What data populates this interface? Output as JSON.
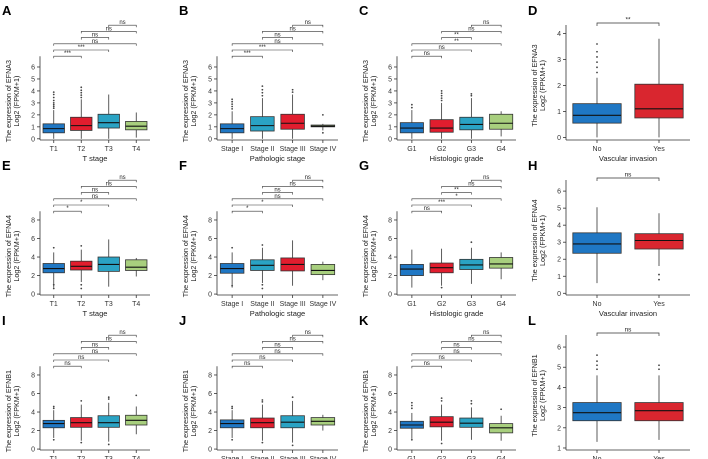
{
  "colors": {
    "stage1": "#1f77c4",
    "stage2": "#e11d2e",
    "stage3": "#2aa3c4",
    "stage4": "#a8cf7e",
    "yes": "#d9262f"
  },
  "ylabel_line2": "Log2 (FPKM+1)",
  "chart_data": [
    {
      "id": "A",
      "panel_label": "A",
      "type": "box",
      "gene": "EFNA3",
      "ylabel": "The expression of EFNA3",
      "xlabel": "T stage",
      "categories": [
        "T1",
        "T2",
        "T3",
        "T4"
      ],
      "color_keys": [
        "stage1",
        "stage2",
        "stage3",
        "stage4"
      ],
      "ylim": [
        -0.1,
        6.4
      ],
      "yticks": [
        0,
        1,
        2,
        3,
        4,
        5,
        6
      ],
      "boxes": [
        {
          "q1": 0.5,
          "med": 0.85,
          "q3": 1.25,
          "lo": 0.0,
          "hi": 2.4,
          "out": [
            2.55,
            2.7,
            2.85,
            3.0,
            3.2,
            3.45,
            3.7,
            3.9
          ]
        },
        {
          "q1": 0.7,
          "med": 1.1,
          "q3": 1.8,
          "lo": 0.0,
          "hi": 3.3,
          "out": [
            3.45,
            3.65,
            3.85,
            4.05,
            4.3
          ]
        },
        {
          "q1": 0.9,
          "med": 1.35,
          "q3": 2.05,
          "lo": 0.0,
          "hi": 3.7,
          "out": []
        },
        {
          "q1": 0.75,
          "med": 1.05,
          "q3": 1.45,
          "lo": 0.1,
          "hi": 2.2,
          "out": []
        }
      ],
      "sig": [
        {
          "a": 0,
          "b": 1,
          "label": "***"
        },
        {
          "a": 0,
          "b": 2,
          "label": "***"
        },
        {
          "a": 0,
          "b": 3,
          "label": "ns"
        },
        {
          "a": 1,
          "b": 2,
          "label": "ns"
        },
        {
          "a": 1,
          "b": 3,
          "label": "ns"
        },
        {
          "a": 2,
          "b": 3,
          "label": "ns"
        }
      ]
    },
    {
      "id": "B",
      "panel_label": "B",
      "type": "box",
      "gene": "EFNA3",
      "ylabel": "The expression of EFNA3",
      "xlabel": "Pathologic stage",
      "categories": [
        "Stage I",
        "Stage II",
        "Stage III",
        "Stage IV"
      ],
      "color_keys": [
        "stage1",
        "stage3",
        "stage2",
        "stage4"
      ],
      "ylim": [
        -0.1,
        6.4
      ],
      "yticks": [
        0,
        1,
        2,
        3,
        4,
        5,
        6
      ],
      "boxes": [
        {
          "q1": 0.5,
          "med": 0.85,
          "q3": 1.25,
          "lo": 0.0,
          "hi": 2.3,
          "out": [
            2.5,
            2.7,
            2.9,
            3.1,
            3.3
          ]
        },
        {
          "q1": 0.65,
          "med": 1.1,
          "q3": 1.85,
          "lo": 0.0,
          "hi": 3.4,
          "out": [
            3.6,
            3.85,
            4.1,
            4.4
          ]
        },
        {
          "q1": 0.8,
          "med": 1.3,
          "q3": 2.05,
          "lo": 0.0,
          "hi": 3.7,
          "out": [
            3.9,
            4.1
          ]
        },
        {
          "q1": 1.0,
          "med": 1.05,
          "q3": 1.15,
          "lo": 0.7,
          "hi": 1.25,
          "out": [
            2.0,
            0.5
          ]
        }
      ],
      "sig": [
        {
          "a": 0,
          "b": 1,
          "label": "***"
        },
        {
          "a": 0,
          "b": 2,
          "label": "***"
        },
        {
          "a": 0,
          "b": 3,
          "label": "ns"
        },
        {
          "a": 1,
          "b": 2,
          "label": "ns"
        },
        {
          "a": 1,
          "b": 3,
          "label": "ns"
        },
        {
          "a": 2,
          "b": 3,
          "label": "ns"
        }
      ]
    },
    {
      "id": "C",
      "panel_label": "C",
      "type": "box",
      "gene": "EFNA3",
      "ylabel": "The expression of EFNA3",
      "xlabel": "Histologic grade",
      "categories": [
        "G1",
        "G2",
        "G3",
        "G4"
      ],
      "color_keys": [
        "stage1",
        "stage2",
        "stage3",
        "stage4"
      ],
      "ylim": [
        -0.1,
        6.4
      ],
      "yticks": [
        0,
        1,
        2,
        3,
        4,
        5,
        6
      ],
      "boxes": [
        {
          "q1": 0.5,
          "med": 0.9,
          "q3": 1.35,
          "lo": 0.0,
          "hi": 2.4,
          "out": [
            2.6,
            2.85
          ]
        },
        {
          "q1": 0.55,
          "med": 0.9,
          "q3": 1.6,
          "lo": 0.0,
          "hi": 3.0,
          "out": [
            3.2,
            3.4,
            3.6,
            3.8,
            4.0
          ]
        },
        {
          "q1": 0.75,
          "med": 1.2,
          "q3": 1.8,
          "lo": 0.0,
          "hi": 3.4,
          "out": [
            3.6,
            3.75
          ]
        },
        {
          "q1": 0.8,
          "med": 1.3,
          "q3": 2.05,
          "lo": 0.2,
          "hi": 2.3,
          "out": []
        }
      ],
      "sig": [
        {
          "a": 0,
          "b": 1,
          "label": "ns"
        },
        {
          "a": 0,
          "b": 2,
          "label": "ns"
        },
        {
          "a": 0,
          "b": 3,
          "label": "**"
        },
        {
          "a": 1,
          "b": 2,
          "label": "**"
        },
        {
          "a": 1,
          "b": 3,
          "label": "ns"
        },
        {
          "a": 2,
          "b": 3,
          "label": "ns"
        }
      ]
    },
    {
      "id": "D",
      "panel_label": "D",
      "type": "box",
      "gene": "EFNA3",
      "ylabel": "The expression of EFNA3",
      "xlabel": "Vascular invasion",
      "categories": [
        "No",
        "Yes"
      ],
      "color_keys": [
        "stage1",
        "yes"
      ],
      "ylim": [
        -0.1,
        4.1
      ],
      "yticks": [
        0,
        1,
        2,
        3,
        4
      ],
      "boxes": [
        {
          "q1": 0.55,
          "med": 0.85,
          "q3": 1.3,
          "lo": 0.0,
          "hi": 2.3,
          "out": [
            2.5,
            2.7,
            2.9,
            3.1,
            3.3,
            3.6
          ]
        },
        {
          "q1": 0.75,
          "med": 1.1,
          "q3": 2.05,
          "lo": 0.0,
          "hi": 3.8,
          "out": []
        }
      ],
      "sig": [
        {
          "a": 0,
          "b": 1,
          "label": "**"
        }
      ]
    },
    {
      "id": "E",
      "panel_label": "E",
      "type": "box",
      "gene": "EFNA4",
      "ylabel": "The expression of EFNA4",
      "xlabel": "T stage",
      "categories": [
        "T1",
        "T2",
        "T3",
        "T4"
      ],
      "color_keys": [
        "stage1",
        "stage2",
        "stage3",
        "stage4"
      ],
      "ylim": [
        -0.1,
        8.3
      ],
      "yticks": [
        0,
        2,
        4,
        6,
        8
      ],
      "boxes": [
        {
          "q1": 2.3,
          "med": 2.75,
          "q3": 3.3,
          "lo": 0.7,
          "hi": 4.5,
          "out": [
            5.0,
            1.0,
            0.6
          ]
        },
        {
          "q1": 2.6,
          "med": 3.0,
          "q3": 3.55,
          "lo": 1.3,
          "hi": 4.8,
          "out": [
            1.0,
            0.6,
            5.2
          ]
        },
        {
          "q1": 2.45,
          "med": 3.2,
          "q3": 4.0,
          "lo": 0.8,
          "hi": 5.9,
          "out": []
        },
        {
          "q1": 2.55,
          "med": 2.9,
          "q3": 3.7,
          "lo": 1.9,
          "hi": 3.9,
          "out": []
        }
      ],
      "sig": [
        {
          "a": 0,
          "b": 1,
          "label": "*"
        },
        {
          "a": 0,
          "b": 2,
          "label": "*"
        },
        {
          "a": 0,
          "b": 3,
          "label": "ns"
        },
        {
          "a": 1,
          "b": 2,
          "label": "ns"
        },
        {
          "a": 1,
          "b": 3,
          "label": "ns"
        },
        {
          "a": 2,
          "b": 3,
          "label": "ns"
        }
      ]
    },
    {
      "id": "F",
      "panel_label": "F",
      "type": "box",
      "gene": "EFNA4",
      "ylabel": "The expression of EFNA4",
      "xlabel": "Pathologic stage",
      "categories": [
        "Stage I",
        "Stage II",
        "Stage III",
        "Stage IV"
      ],
      "color_keys": [
        "stage1",
        "stage3",
        "stage2",
        "stage4"
      ],
      "ylim": [
        -0.1,
        8.3
      ],
      "yticks": [
        0,
        2,
        4,
        6,
        8
      ],
      "boxes": [
        {
          "q1": 2.25,
          "med": 2.75,
          "q3": 3.3,
          "lo": 0.7,
          "hi": 4.5,
          "out": [
            5.0,
            0.9
          ]
        },
        {
          "q1": 2.55,
          "med": 3.1,
          "q3": 3.7,
          "lo": 1.2,
          "hi": 5.0,
          "out": [
            1.0,
            0.6,
            5.3
          ]
        },
        {
          "q1": 2.5,
          "med": 3.2,
          "q3": 3.9,
          "lo": 0.9,
          "hi": 5.8,
          "out": []
        },
        {
          "q1": 2.1,
          "med": 2.55,
          "q3": 3.2,
          "lo": 1.5,
          "hi": 3.5,
          "out": []
        }
      ],
      "sig": [
        {
          "a": 0,
          "b": 1,
          "label": "*"
        },
        {
          "a": 0,
          "b": 2,
          "label": "*"
        },
        {
          "a": 0,
          "b": 3,
          "label": "ns"
        },
        {
          "a": 1,
          "b": 2,
          "label": "ns"
        },
        {
          "a": 1,
          "b": 3,
          "label": "ns"
        },
        {
          "a": 2,
          "b": 3,
          "label": "ns"
        }
      ]
    },
    {
      "id": "G",
      "panel_label": "G",
      "type": "box",
      "gene": "EFNA4",
      "ylabel": "The expression of EFNA4",
      "xlabel": "Histologic grade",
      "categories": [
        "G1",
        "G2",
        "G3",
        "G4"
      ],
      "color_keys": [
        "stage1",
        "stage2",
        "stage3",
        "stage4"
      ],
      "ylim": [
        -0.1,
        8.3
      ],
      "yticks": [
        0,
        2,
        4,
        6,
        8
      ],
      "boxes": [
        {
          "q1": 2.0,
          "med": 2.7,
          "q3": 3.2,
          "lo": 0.7,
          "hi": 4.8,
          "out": []
        },
        {
          "q1": 2.3,
          "med": 2.85,
          "q3": 3.35,
          "lo": 0.9,
          "hi": 4.9,
          "out": [
            0.7
          ]
        },
        {
          "q1": 2.65,
          "med": 3.15,
          "q3": 3.75,
          "lo": 1.1,
          "hi": 5.0,
          "out": [
            5.6
          ]
        },
        {
          "q1": 2.8,
          "med": 3.25,
          "q3": 3.95,
          "lo": 1.6,
          "hi": 4.5,
          "out": []
        }
      ],
      "sig": [
        {
          "a": 0,
          "b": 1,
          "label": "ns"
        },
        {
          "a": 0,
          "b": 2,
          "label": "***"
        },
        {
          "a": 0,
          "b": 3,
          "label": "*"
        },
        {
          "a": 1,
          "b": 2,
          "label": "**"
        },
        {
          "a": 1,
          "b": 3,
          "label": "ns"
        },
        {
          "a": 2,
          "b": 3,
          "label": "ns"
        }
      ]
    },
    {
      "id": "H",
      "panel_label": "H",
      "type": "box",
      "gene": "EFNA4",
      "ylabel": "The expression of EFNA4",
      "xlabel": "Vascular invasion",
      "categories": [
        "No",
        "Yes"
      ],
      "color_keys": [
        "stage1",
        "yes"
      ],
      "ylim": [
        -0.1,
        6.3
      ],
      "yticks": [
        0,
        1,
        2,
        3,
        4,
        5,
        6
      ],
      "boxes": [
        {
          "q1": 2.35,
          "med": 2.9,
          "q3": 3.55,
          "lo": 0.6,
          "hi": 5.05,
          "out": []
        },
        {
          "q1": 2.6,
          "med": 3.1,
          "q3": 3.5,
          "lo": 1.6,
          "hi": 4.7,
          "out": [
            1.1,
            0.8
          ]
        }
      ],
      "sig": [
        {
          "a": 0,
          "b": 1,
          "label": "ns"
        }
      ]
    },
    {
      "id": "I",
      "panel_label": "I",
      "type": "box",
      "gene": "EFNB1",
      "ylabel": "The expression of EFNB1",
      "xlabel": "T stage",
      "categories": [
        "T1",
        "T2",
        "T3",
        "T4"
      ],
      "color_keys": [
        "stage1",
        "stage2",
        "stage3",
        "stage4"
      ],
      "ylim": [
        -0.1,
        8.3
      ],
      "yticks": [
        0,
        2,
        4,
        6,
        8
      ],
      "boxes": [
        {
          "q1": 2.3,
          "med": 2.75,
          "q3": 3.1,
          "lo": 1.2,
          "hi": 4.2,
          "out": [
            4.4,
            4.6,
            1.0
          ]
        },
        {
          "q1": 2.35,
          "med": 2.85,
          "q3": 3.4,
          "lo": 0.9,
          "hi": 4.8,
          "out": [
            5.2,
            0.7
          ]
        },
        {
          "q1": 2.35,
          "med": 2.85,
          "q3": 3.6,
          "lo": 0.8,
          "hi": 5.0,
          "out": [
            5.4,
            5.6,
            0.5
          ]
        },
        {
          "q1": 2.6,
          "med": 3.1,
          "q3": 3.65,
          "lo": 1.6,
          "hi": 4.6,
          "out": [
            5.8
          ]
        }
      ],
      "sig": [
        {
          "a": 0,
          "b": 1,
          "label": "ns"
        },
        {
          "a": 0,
          "b": 2,
          "label": "ns"
        },
        {
          "a": 0,
          "b": 3,
          "label": "ns"
        },
        {
          "a": 1,
          "b": 2,
          "label": "ns"
        },
        {
          "a": 1,
          "b": 3,
          "label": "ns"
        },
        {
          "a": 2,
          "b": 3,
          "label": "ns"
        }
      ]
    },
    {
      "id": "J",
      "panel_label": "J",
      "type": "box",
      "gene": "EFNB1",
      "ylabel": "The expression of EFNB1",
      "xlabel": "Pathologic stage",
      "categories": [
        "Stage I",
        "Stage II",
        "Stage III",
        "Stage IV"
      ],
      "color_keys": [
        "stage1",
        "stage2",
        "stage3",
        "stage4"
      ],
      "ylim": [
        -0.1,
        8.3
      ],
      "yticks": [
        0,
        2,
        4,
        6,
        8
      ],
      "boxes": [
        {
          "q1": 2.3,
          "med": 2.75,
          "q3": 3.15,
          "lo": 1.2,
          "hi": 4.2,
          "out": [
            4.4,
            4.6,
            1.0
          ]
        },
        {
          "q1": 2.3,
          "med": 2.85,
          "q3": 3.35,
          "lo": 0.9,
          "hi": 4.8,
          "out": [
            5.1,
            5.3,
            0.7
          ]
        },
        {
          "q1": 2.3,
          "med": 2.9,
          "q3": 3.6,
          "lo": 0.7,
          "hi": 5.2,
          "out": [
            5.6,
            0.4
          ]
        },
        {
          "q1": 2.6,
          "med": 3.0,
          "q3": 3.4,
          "lo": 2.0,
          "hi": 3.7,
          "out": []
        }
      ],
      "sig": [
        {
          "a": 0,
          "b": 1,
          "label": "ns"
        },
        {
          "a": 0,
          "b": 2,
          "label": "ns"
        },
        {
          "a": 0,
          "b": 3,
          "label": "ns"
        },
        {
          "a": 1,
          "b": 2,
          "label": "ns"
        },
        {
          "a": 1,
          "b": 3,
          "label": "ns"
        },
        {
          "a": 2,
          "b": 3,
          "label": "ns"
        }
      ]
    },
    {
      "id": "K",
      "panel_label": "K",
      "type": "box",
      "gene": "EFNB1",
      "ylabel": "The expression of EFNB1",
      "xlabel": "Histologic grade",
      "categories": [
        "G1",
        "G2",
        "G3",
        "G4"
      ],
      "color_keys": [
        "stage1",
        "stage2",
        "stage3",
        "stage4"
      ],
      "ylim": [
        -0.1,
        8.3
      ],
      "yticks": [
        0,
        2,
        4,
        6,
        8
      ],
      "boxes": [
        {
          "q1": 2.25,
          "med": 2.6,
          "q3": 3.0,
          "lo": 1.1,
          "hi": 3.9,
          "out": [
            4.4,
            4.7,
            5.0,
            1.0
          ]
        },
        {
          "q1": 2.4,
          "med": 2.9,
          "q3": 3.5,
          "lo": 0.9,
          "hi": 4.8,
          "out": [
            5.2,
            5.5,
            0.6
          ]
        },
        {
          "q1": 2.35,
          "med": 2.8,
          "q3": 3.35,
          "lo": 1.0,
          "hi": 4.5,
          "out": [
            4.9,
            5.2
          ]
        },
        {
          "q1": 1.75,
          "med": 2.3,
          "q3": 2.75,
          "lo": 0.9,
          "hi": 3.6,
          "out": [
            4.3
          ]
        }
      ],
      "sig": [
        {
          "a": 0,
          "b": 1,
          "label": "ns"
        },
        {
          "a": 0,
          "b": 2,
          "label": "ns"
        },
        {
          "a": 0,
          "b": 3,
          "label": "ns"
        },
        {
          "a": 1,
          "b": 2,
          "label": "ns"
        },
        {
          "a": 1,
          "b": 3,
          "label": "ns"
        },
        {
          "a": 2,
          "b": 3,
          "label": "ns"
        }
      ]
    },
    {
      "id": "L",
      "panel_label": "L",
      "type": "box",
      "gene": "EFNB1",
      "ylabel": "The expression of EFNB1",
      "xlabel": "Vascular invasion",
      "categories": [
        "No",
        "Yes"
      ],
      "color_keys": [
        "stage1",
        "yes"
      ],
      "ylim": [
        0.9,
        6.3
      ],
      "yticks": [
        1,
        2,
        3,
        4,
        5,
        6
      ],
      "boxes": [
        {
          "q1": 2.35,
          "med": 2.75,
          "q3": 3.25,
          "lo": 1.3,
          "hi": 4.6,
          "out": [
            4.9,
            5.1,
            5.3,
            5.6
          ]
        },
        {
          "q1": 2.35,
          "med": 2.85,
          "q3": 3.25,
          "lo": 1.4,
          "hi": 4.6,
          "out": [
            4.9,
            5.1
          ]
        }
      ],
      "sig": [
        {
          "a": 0,
          "b": 1,
          "label": "ns"
        }
      ]
    }
  ]
}
